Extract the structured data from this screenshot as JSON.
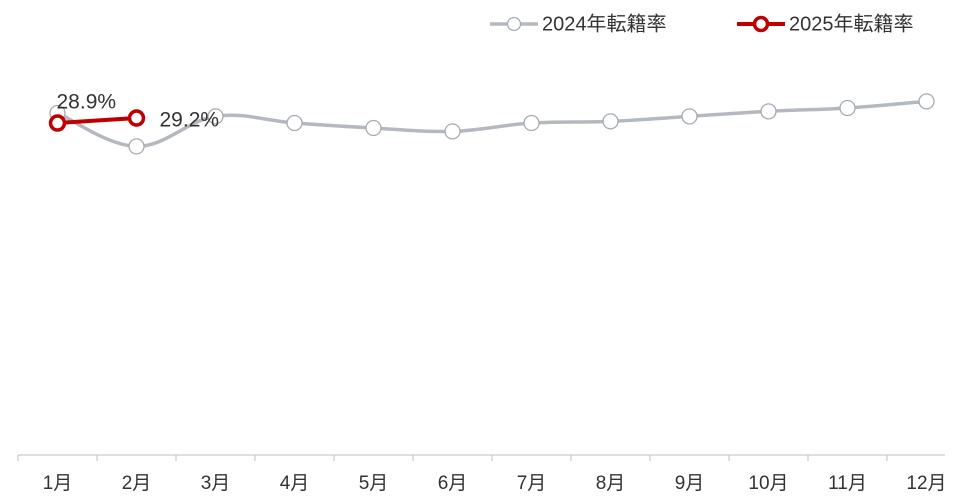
{
  "chart_data": {
    "type": "line",
    "categories": [
      "1月",
      "2月",
      "3月",
      "4月",
      "5月",
      "6月",
      "7月",
      "8月",
      "9月",
      "10月",
      "11月",
      "12月"
    ],
    "series": [
      {
        "name": "2024年転籍率",
        "color": "#b4b9bf",
        "values": [
          29.5,
          27.5,
          29.3,
          28.9,
          28.6,
          28.4,
          28.9,
          29.0,
          29.3,
          29.6,
          29.8,
          30.2
        ]
      },
      {
        "name": "2025年転籍率",
        "color": "#c00000",
        "values": [
          28.9,
          29.2,
          null,
          null,
          null,
          null,
          null,
          null,
          null,
          null,
          null,
          null
        ],
        "value_labels": [
          "28.9%",
          "29.2%",
          null,
          null,
          null,
          null,
          null,
          null,
          null,
          null,
          null,
          null
        ]
      }
    ],
    "ylim": [
      9,
      31
    ],
    "legend": "top-right"
  }
}
